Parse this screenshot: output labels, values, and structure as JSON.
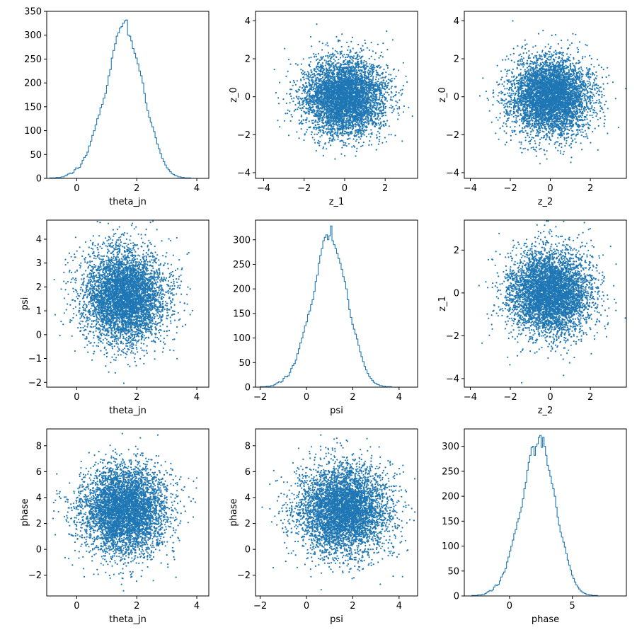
{
  "chart_data": [
    {
      "type": "histogram",
      "xlabel": "theta_jn",
      "ylabel": "",
      "xlim": [
        -1.0,
        4.4
      ],
      "ylim": [
        0,
        350
      ],
      "xticks": [
        0,
        2,
        4
      ],
      "yticks": [
        0,
        50,
        100,
        150,
        200,
        250,
        300,
        350
      ],
      "color": "#1f77b4",
      "bins": {
        "start": -0.9,
        "width": 0.054,
        "counts": [
          1,
          1,
          1,
          1,
          2,
          2,
          2,
          3,
          3,
          5,
          7,
          9,
          11,
          10,
          12,
          18,
          22,
          21,
          23,
          30,
          38,
          44,
          48,
          55,
          68,
          78,
          90,
          100,
          112,
          125,
          133,
          148,
          155,
          168,
          178,
          195,
          215,
          228,
          252,
          268,
          282,
          298,
          305,
          315,
          318,
          325,
          330,
          332,
          300,
          298,
          288,
          272,
          262,
          252,
          240,
          225,
          215,
          200,
          178,
          158,
          142,
          128,
          118,
          108,
          98,
          85,
          72,
          62,
          52,
          42,
          35,
          28,
          22,
          18,
          14,
          10,
          8,
          6,
          5,
          3,
          3,
          2,
          2,
          1,
          1,
          1,
          1,
          0,
          0,
          0,
          0,
          0,
          0,
          0,
          0,
          0,
          0,
          0,
          0,
          0,
          0
        ]
      }
    },
    {
      "type": "scatter",
      "xlabel": "z_1",
      "ylabel": "z_0",
      "xlim": [
        -4.4,
        3.6
      ],
      "ylim": [
        -4.3,
        4.5
      ],
      "xticks": [
        -4,
        -2,
        0,
        2
      ],
      "yticks": [
        -4,
        -2,
        0,
        2,
        4
      ],
      "color": "#1f77b4",
      "points": {
        "distribution": "normal",
        "n": 5000,
        "x_mean": 0.0,
        "x_std": 1.0,
        "y_mean": 0.0,
        "y_std": 1.0,
        "seed": 11
      }
    },
    {
      "type": "scatter",
      "xlabel": "z_2",
      "ylabel": "z_0",
      "xlim": [
        -4.3,
        3.8
      ],
      "ylim": [
        -4.3,
        4.5
      ],
      "xticks": [
        -4,
        -2,
        0,
        2
      ],
      "yticks": [
        -4,
        -2,
        0,
        2,
        4
      ],
      "color": "#1f77b4",
      "points": {
        "distribution": "normal",
        "n": 5000,
        "x_mean": 0.0,
        "x_std": 1.0,
        "y_mean": 0.0,
        "y_std": 1.0,
        "seed": 23
      }
    },
    {
      "type": "scatter",
      "xlabel": "theta_jn",
      "ylabel": "psi",
      "xlim": [
        -1.0,
        4.4
      ],
      "ylim": [
        -2.2,
        4.8
      ],
      "xticks": [
        0,
        2,
        4
      ],
      "yticks": [
        -2,
        -1,
        0,
        1,
        2,
        3,
        4
      ],
      "color": "#1f77b4",
      "points": {
        "distribution": "normal",
        "n": 5000,
        "x_mean": 1.6,
        "x_std": 0.7,
        "y_mean": 1.6,
        "y_std": 1.0,
        "seed": 37
      }
    },
    {
      "type": "histogram",
      "xlabel": "psi",
      "ylabel": "",
      "xlim": [
        -2.2,
        4.8
      ],
      "ylim": [
        0,
        340
      ],
      "xticks": [
        -2,
        0,
        2,
        4
      ],
      "yticks": [
        0,
        50,
        100,
        150,
        200,
        250,
        300
      ],
      "color": "#1f77b4",
      "bins": {
        "start": -2.0,
        "width": 0.066,
        "counts": [
          1,
          1,
          1,
          1,
          2,
          2,
          2,
          3,
          3,
          5,
          7,
          9,
          11,
          10,
          12,
          18,
          22,
          21,
          23,
          30,
          38,
          44,
          48,
          55,
          68,
          78,
          90,
          100,
          112,
          125,
          133,
          148,
          155,
          168,
          178,
          195,
          215,
          228,
          252,
          268,
          282,
          298,
          305,
          310,
          300,
          308,
          328,
          298,
          290,
          282,
          272,
          262,
          252,
          240,
          225,
          215,
          200,
          178,
          158,
          142,
          128,
          118,
          108,
          98,
          85,
          72,
          62,
          52,
          42,
          35,
          28,
          22,
          18,
          14,
          10,
          8,
          6,
          5,
          3,
          3,
          2,
          2,
          1,
          1,
          1,
          1,
          0,
          0,
          0,
          0,
          0,
          0,
          0,
          0,
          0,
          0,
          0,
          0,
          0,
          0,
          0
        ]
      }
    },
    {
      "type": "scatter",
      "xlabel": "z_2",
      "ylabel": "z_1",
      "xlim": [
        -4.3,
        3.8
      ],
      "ylim": [
        -4.4,
        3.4
      ],
      "xticks": [
        -4,
        -2,
        0,
        2
      ],
      "yticks": [
        -4,
        -2,
        0,
        2
      ],
      "color": "#1f77b4",
      "points": {
        "distribution": "normal",
        "n": 5000,
        "x_mean": 0.0,
        "x_std": 1.0,
        "y_mean": 0.0,
        "y_std": 1.0,
        "seed": 41
      }
    },
    {
      "type": "scatter",
      "xlabel": "theta_jn",
      "ylabel": "phase",
      "xlim": [
        -1.0,
        4.4
      ],
      "ylim": [
        -3.6,
        9.3
      ],
      "xticks": [
        0,
        2,
        4
      ],
      "yticks": [
        -2,
        0,
        2,
        4,
        6,
        8
      ],
      "color": "#1f77b4",
      "points": {
        "distribution": "normal",
        "n": 5000,
        "x_mean": 1.6,
        "x_std": 0.7,
        "y_mean": 3.1,
        "y_std": 1.7,
        "seed": 53
      }
    },
    {
      "type": "scatter",
      "xlabel": "psi",
      "ylabel": "phase",
      "xlim": [
        -2.2,
        4.8
      ],
      "ylim": [
        -3.6,
        9.3
      ],
      "xticks": [
        -2,
        0,
        2,
        4
      ],
      "yticks": [
        -2,
        0,
        2,
        4,
        6,
        8
      ],
      "color": "#1f77b4",
      "points": {
        "distribution": "normal",
        "n": 5000,
        "x_mean": 1.6,
        "x_std": 1.0,
        "y_mean": 3.1,
        "y_std": 1.7,
        "seed": 67
      }
    },
    {
      "type": "histogram",
      "xlabel": "phase",
      "ylabel": "",
      "xlim": [
        -3.6,
        9.3
      ],
      "ylim": [
        0,
        335
      ],
      "xticks": [
        0,
        5
      ],
      "yticks": [
        0,
        50,
        100,
        150,
        200,
        250,
        300
      ],
      "color": "#1f77b4",
      "bins": {
        "start": -3.0,
        "width": 0.115,
        "counts": [
          1,
          1,
          1,
          1,
          2,
          2,
          2,
          3,
          3,
          5,
          7,
          9,
          11,
          10,
          12,
          18,
          22,
          21,
          23,
          30,
          38,
          44,
          48,
          55,
          68,
          78,
          90,
          100,
          112,
          125,
          133,
          148,
          155,
          168,
          178,
          195,
          215,
          228,
          252,
          268,
          282,
          298,
          300,
          282,
          300,
          305,
          318,
          322,
          298,
          318,
          300,
          282,
          262,
          252,
          240,
          225,
          215,
          200,
          178,
          158,
          142,
          128,
          118,
          108,
          98,
          85,
          72,
          62,
          52,
          42,
          35,
          28,
          22,
          18,
          14,
          10,
          8,
          6,
          5,
          3,
          3,
          2,
          2,
          1,
          1,
          1,
          1,
          0,
          0,
          0,
          0,
          0,
          0,
          0,
          0,
          0,
          0,
          0,
          0,
          0,
          0,
          0
        ]
      }
    }
  ]
}
